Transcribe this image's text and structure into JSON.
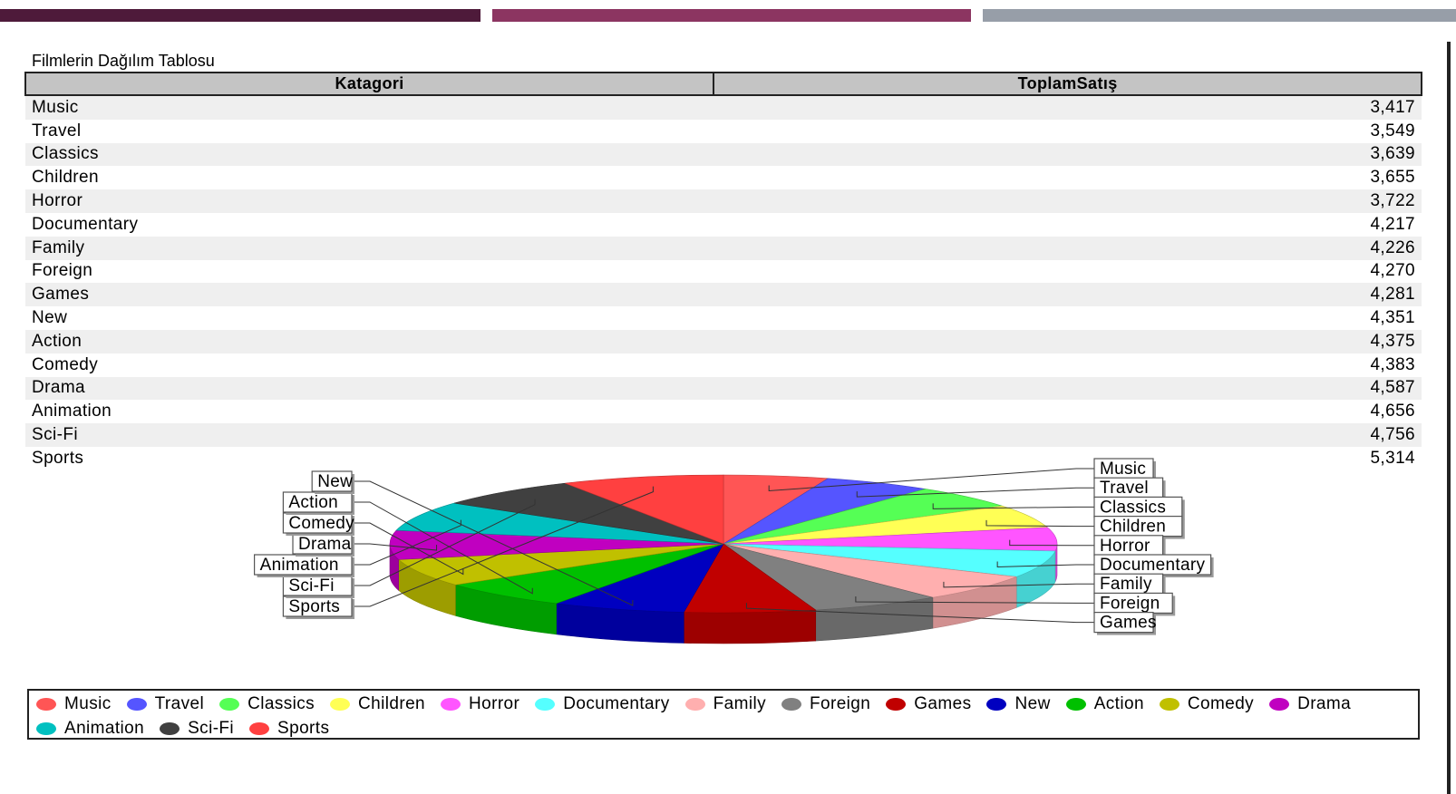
{
  "report_title": "Filmlerin Dağılım Tablosu",
  "table": {
    "headers": [
      "Katagori",
      "ToplamSatış"
    ],
    "rows": [
      {
        "category": "Music",
        "total": "3,417"
      },
      {
        "category": "Travel",
        "total": "3,549"
      },
      {
        "category": "Classics",
        "total": "3,639"
      },
      {
        "category": "Children",
        "total": "3,655"
      },
      {
        "category": "Horror",
        "total": "3,722"
      },
      {
        "category": "Documentary",
        "total": "4,217"
      },
      {
        "category": "Family",
        "total": "4,226"
      },
      {
        "category": "Foreign",
        "total": "4,270"
      },
      {
        "category": "Games",
        "total": "4,281"
      },
      {
        "category": "New",
        "total": "4,351"
      },
      {
        "category": "Action",
        "total": "4,375"
      },
      {
        "category": "Comedy",
        "total": "4,383"
      },
      {
        "category": "Drama",
        "total": "4,587"
      },
      {
        "category": "Animation",
        "total": "4,656"
      },
      {
        "category": "Sci-Fi",
        "total": "4,756"
      },
      {
        "category": "Sports",
        "total": "5,314"
      }
    ]
  },
  "chart_data": {
    "type": "pie",
    "style": "3d",
    "title": "",
    "legend_placement": "bottom",
    "labels": [
      "Music",
      "Travel",
      "Classics",
      "Children",
      "Horror",
      "Documentary",
      "Family",
      "Foreign",
      "Games",
      "New",
      "Action",
      "Comedy",
      "Drama",
      "Animation",
      "Sci-Fi",
      "Sports"
    ],
    "values": [
      3417,
      3549,
      3639,
      3655,
      3722,
      4217,
      4226,
      4270,
      4281,
      4351,
      4375,
      4383,
      4587,
      4656,
      4756,
      5314
    ],
    "colors": [
      "#ff5555",
      "#5555ff",
      "#55ff55",
      "#ffff55",
      "#ff55ff",
      "#55ffff",
      "#ffafaf",
      "#808080",
      "#c00000",
      "#0000c0",
      "#00c000",
      "#c0c000",
      "#c000c0",
      "#00c0c0",
      "#404040",
      "#ff4040"
    ]
  }
}
